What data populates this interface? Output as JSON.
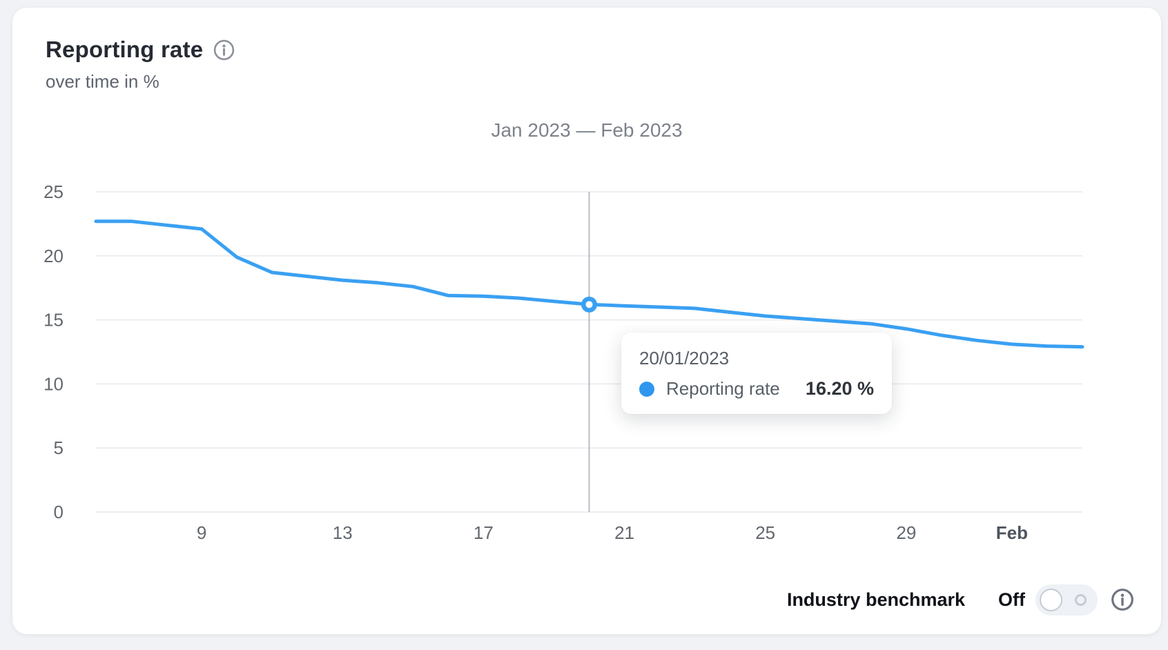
{
  "header": {
    "title": "Reporting rate",
    "subtitle": "over time in %"
  },
  "chart": {
    "range_title": "Jan 2023 — Feb 2023"
  },
  "chart_data": {
    "type": "line",
    "title": "Jan 2023 — Feb 2023",
    "series_name": "Reporting rate",
    "unit": "%",
    "x": [
      "06/01/2023",
      "07/01/2023",
      "08/01/2023",
      "09/01/2023",
      "10/01/2023",
      "11/01/2023",
      "12/01/2023",
      "13/01/2023",
      "14/01/2023",
      "15/01/2023",
      "16/01/2023",
      "17/01/2023",
      "18/01/2023",
      "19/01/2023",
      "20/01/2023",
      "21/01/2023",
      "22/01/2023",
      "23/01/2023",
      "24/01/2023",
      "25/01/2023",
      "26/01/2023",
      "27/01/2023",
      "28/01/2023",
      "29/01/2023",
      "30/01/2023",
      "31/01/2023",
      "01/02/2023",
      "02/02/2023",
      "03/02/2023"
    ],
    "values": [
      22.7,
      22.7,
      22.4,
      22.1,
      19.9,
      18.7,
      18.4,
      18.1,
      17.9,
      17.6,
      16.9,
      16.85,
      16.7,
      16.45,
      16.2,
      16.1,
      16.0,
      15.9,
      15.6,
      15.3,
      15.1,
      14.9,
      14.7,
      14.3,
      13.8,
      13.4,
      13.1,
      12.95,
      12.9
    ],
    "ylim": [
      0,
      25
    ],
    "y_ticks": [
      0,
      5,
      10,
      15,
      20,
      25
    ],
    "x_tick_labels": [
      {
        "label": "9",
        "index": 3,
        "bold": false
      },
      {
        "label": "13",
        "index": 7,
        "bold": false
      },
      {
        "label": "17",
        "index": 11,
        "bold": false
      },
      {
        "label": "21",
        "index": 15,
        "bold": false
      },
      {
        "label": "25",
        "index": 19,
        "bold": false
      },
      {
        "label": "29",
        "index": 23,
        "bold": false
      },
      {
        "label": "Feb",
        "index": 26,
        "bold": true
      }
    ],
    "grid": "horizontal",
    "legend_position": "none",
    "hover": {
      "index": 14,
      "date": "20/01/2023",
      "value": 16.2,
      "display_value": "16.20 %"
    }
  },
  "tooltip": {
    "date": "20/01/2023",
    "series_label": "Reporting rate",
    "value": "16.20 %"
  },
  "footer": {
    "benchmark_label": "Industry benchmark",
    "toggle_state": "Off"
  },
  "icons": {
    "header_info": "info-icon",
    "footer_info": "info-icon",
    "toggle": "industry-benchmark-toggle"
  },
  "colors": {
    "line": "#3aa0f2",
    "accent_blue": "#2f97ef",
    "grid": "#edeef1",
    "axis_text": "#63686f",
    "axis_text_bold": "#4e545e",
    "hover_line": "#b8bdc6",
    "title_text": "#262a33",
    "card_bg": "#ffffff",
    "page_bg": "#f1f2f5"
  }
}
